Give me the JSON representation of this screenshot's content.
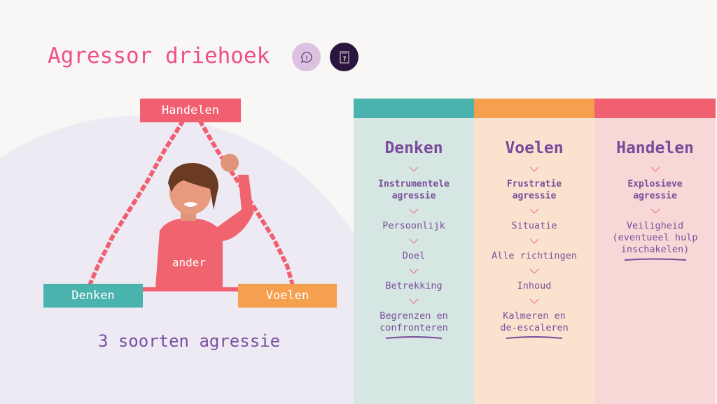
{
  "header": {
    "title": "Agressor driehoek",
    "icons": [
      "speech-bubble-exclamation-icon",
      "book-question-icon"
    ]
  },
  "triangle": {
    "top": "Handelen",
    "left": "Denken",
    "right": "Voelen",
    "center": "ander",
    "subtitle": "3 soorten agressie"
  },
  "colors": {
    "denken": "#4ab3ad",
    "voelen": "#f5a04e",
    "handelen": "#f06070",
    "title": "#ee4f8a",
    "text": "#7a4f9a"
  },
  "columns": [
    {
      "title": "Denken",
      "type": "Instrumentele agressie",
      "steps": [
        "Persoonlijk",
        "Doel",
        "Betrekking"
      ],
      "action": "Begrenzen en confronteren"
    },
    {
      "title": "Voelen",
      "type": "Frustratie agressie",
      "steps": [
        "Situatie",
        "Alle richtingen",
        "Inhoud"
      ],
      "action": "Kalmeren en de-escaleren"
    },
    {
      "title": "Handelen",
      "type": "Explosieve agressie",
      "steps": [],
      "action": "Veiligheid (eventueel hulp inschakelen)"
    }
  ]
}
